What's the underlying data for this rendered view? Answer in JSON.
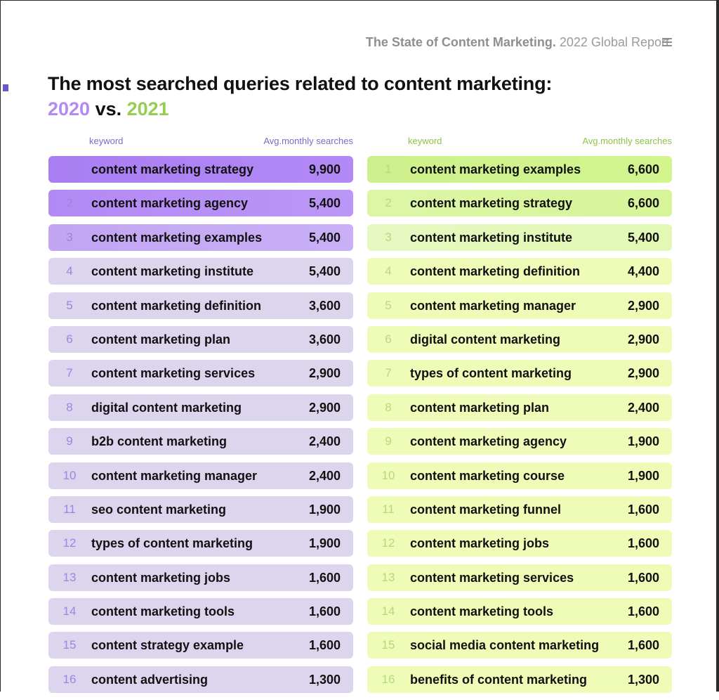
{
  "header": {
    "report_bold": "The State of Content Marketing.",
    "report_rest": " 2022 Global Report.",
    "menu_icon": "hamburger-menu-icon"
  },
  "title": "The most searched queries related to content marketing:",
  "subtitle": {
    "year_a": "2020",
    "vs": " vs. ",
    "year_b": "2021"
  },
  "colors": {
    "purple_accent": "#b489f3",
    "green_accent": "#97cc52",
    "purple_row_base": "#ddd5ee",
    "green_row_base": "#eefcb8"
  },
  "chart_data": {
    "type": "table",
    "tables": [
      {
        "year": "2020",
        "columns": [
          "keyword",
          "Avg.monthly searches"
        ],
        "rows": [
          {
            "rank": "1",
            "keyword": "content marketing strategy",
            "searches": "9,900",
            "value": 9900
          },
          {
            "rank": "2",
            "keyword": "content marketing agency",
            "searches": "5,400",
            "value": 5400
          },
          {
            "rank": "3",
            "keyword": "content marketing examples",
            "searches": "5,400",
            "value": 5400
          },
          {
            "rank": "4",
            "keyword": "content marketing institute",
            "searches": "5,400",
            "value": 5400
          },
          {
            "rank": "5",
            "keyword": "content marketing definition",
            "searches": "3,600",
            "value": 3600
          },
          {
            "rank": "6",
            "keyword": "content marketing plan",
            "searches": "3,600",
            "value": 3600
          },
          {
            "rank": "7",
            "keyword": "content marketing services",
            "searches": "2,900",
            "value": 2900
          },
          {
            "rank": "8",
            "keyword": "digital content marketing",
            "searches": "2,900",
            "value": 2900
          },
          {
            "rank": "9",
            "keyword": "b2b content marketing",
            "searches": "2,400",
            "value": 2400
          },
          {
            "rank": "10",
            "keyword": "content marketing manager",
            "searches": "2,400",
            "value": 2400
          },
          {
            "rank": "11",
            "keyword": "seo content marketing",
            "searches": "1,900",
            "value": 1900
          },
          {
            "rank": "12",
            "keyword": "types of content marketing",
            "searches": "1,900",
            "value": 1900
          },
          {
            "rank": "13",
            "keyword": "content marketing jobs",
            "searches": "1,600",
            "value": 1600
          },
          {
            "rank": "14",
            "keyword": "content marketing tools",
            "searches": "1,600",
            "value": 1600
          },
          {
            "rank": "15",
            "keyword": "content strategy example",
            "searches": "1,600",
            "value": 1600
          },
          {
            "rank": "16",
            "keyword": "content advertising",
            "searches": "1,300",
            "value": 1300
          }
        ]
      },
      {
        "year": "2021",
        "columns": [
          "keyword",
          "Avg.monthly searches"
        ],
        "rows": [
          {
            "rank": "1",
            "keyword": "content marketing examples",
            "searches": "6,600",
            "value": 6600
          },
          {
            "rank": "2",
            "keyword": "content marketing strategy",
            "searches": "6,600",
            "value": 6600
          },
          {
            "rank": "3",
            "keyword": "content marketing institute",
            "searches": "5,400",
            "value": 5400
          },
          {
            "rank": "4",
            "keyword": "content marketing definition",
            "searches": "4,400",
            "value": 4400
          },
          {
            "rank": "5",
            "keyword": "content marketing manager",
            "searches": "2,900",
            "value": 2900
          },
          {
            "rank": "6",
            "keyword": "digital content marketing",
            "searches": "2,900",
            "value": 2900
          },
          {
            "rank": "7",
            "keyword": "types of content marketing",
            "searches": "2,900",
            "value": 2900
          },
          {
            "rank": "8",
            "keyword": "content marketing plan",
            "searches": "2,400",
            "value": 2400
          },
          {
            "rank": "9",
            "keyword": "content marketing agency",
            "searches": "1,900",
            "value": 1900
          },
          {
            "rank": "10",
            "keyword": "content marketing course",
            "searches": "1,900",
            "value": 1900
          },
          {
            "rank": "11",
            "keyword": "content marketing funnel",
            "searches": "1,600",
            "value": 1600
          },
          {
            "rank": "12",
            "keyword": "content marketing jobs",
            "searches": "1,600",
            "value": 1600
          },
          {
            "rank": "13",
            "keyword": "content marketing services",
            "searches": "1,600",
            "value": 1600
          },
          {
            "rank": "14",
            "keyword": "content marketing tools",
            "searches": "1,600",
            "value": 1600
          },
          {
            "rank": "15",
            "keyword": "social media content marketing",
            "searches": "1,600",
            "value": 1600
          },
          {
            "rank": "16",
            "keyword": "benefits of content marketing",
            "searches": "1,300",
            "value": 1300
          }
        ]
      }
    ]
  }
}
